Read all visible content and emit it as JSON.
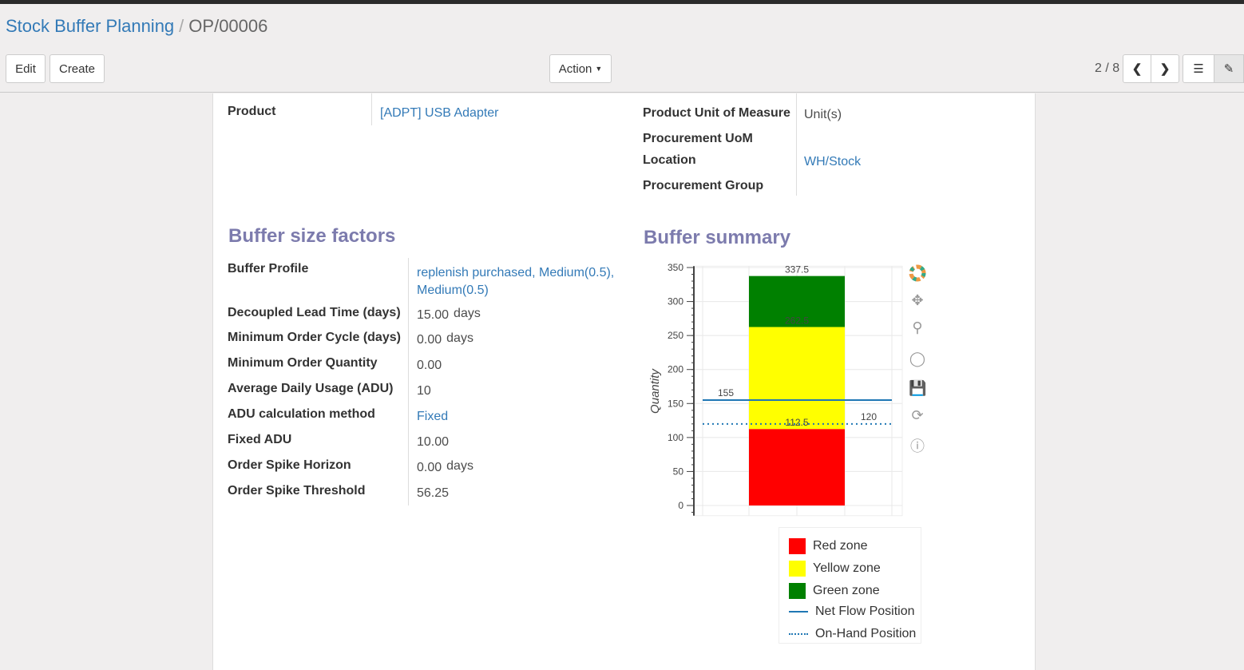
{
  "breadcrumb": {
    "parent": "Stock Buffer Planning",
    "current": "OP/00006"
  },
  "toolbar": {
    "edit": "Edit",
    "create": "Create",
    "action": "Action",
    "pager": "2 / 8"
  },
  "fields": {
    "product_label": "Product",
    "product_value": "[ADPT] USB Adapter",
    "uom_label": "Product Unit of Measure",
    "uom_value": "Unit(s)",
    "proc_uom_label": "Procurement UoM",
    "location_label": "Location",
    "location_value": "WH/Stock",
    "proc_group_label": "Procurement Group"
  },
  "factors": {
    "title": "Buffer size factors",
    "rows": [
      {
        "label": "Buffer Profile",
        "value": "replenish purchased, Medium(0.5), Medium(0.5)",
        "link": true
      },
      {
        "label": "Decoupled Lead Time (days)",
        "value": "15.00",
        "unit": "days"
      },
      {
        "label": "Minimum Order Cycle (days)",
        "value": "0.00",
        "unit": "days"
      },
      {
        "label": "Minimum Order Quantity",
        "value": "0.00"
      },
      {
        "label": "Average Daily Usage (ADU)",
        "value": "10"
      },
      {
        "label": "ADU calculation method",
        "value": "Fixed",
        "link": true
      },
      {
        "label": "Fixed ADU",
        "value": "10.00"
      },
      {
        "label": "Order Spike Horizon",
        "value": "0.00",
        "unit": "days"
      },
      {
        "label": "Order Spike Threshold",
        "value": "56.25"
      }
    ]
  },
  "summary": {
    "title": "Buffer summary"
  },
  "chart_data": {
    "type": "bar",
    "ylabel": "Quantity",
    "ylim": [
      -15,
      352
    ],
    "yticks": [
      0,
      50,
      100,
      150,
      200,
      250,
      300,
      350
    ],
    "grid": true,
    "stacked_segments": [
      {
        "name": "Red zone",
        "from": 0,
        "to": 112.5,
        "color": "#ff0000",
        "label": "112.5"
      },
      {
        "name": "Yellow zone",
        "from": 112.5,
        "to": 262.5,
        "color": "#ffff00",
        "label": "262.5"
      },
      {
        "name": "Green zone",
        "from": 262.5,
        "to": 337.5,
        "color": "#008000",
        "label": "337.5"
      }
    ],
    "lines": [
      {
        "name": "Net Flow Position",
        "value": 155,
        "label": "155",
        "style": "solid",
        "color": "#1f77b4"
      },
      {
        "name": "On-Hand Position",
        "value": 120,
        "label": "120",
        "style": "dotted",
        "color": "#1f77b4"
      }
    ],
    "legend_position": "bottom"
  }
}
